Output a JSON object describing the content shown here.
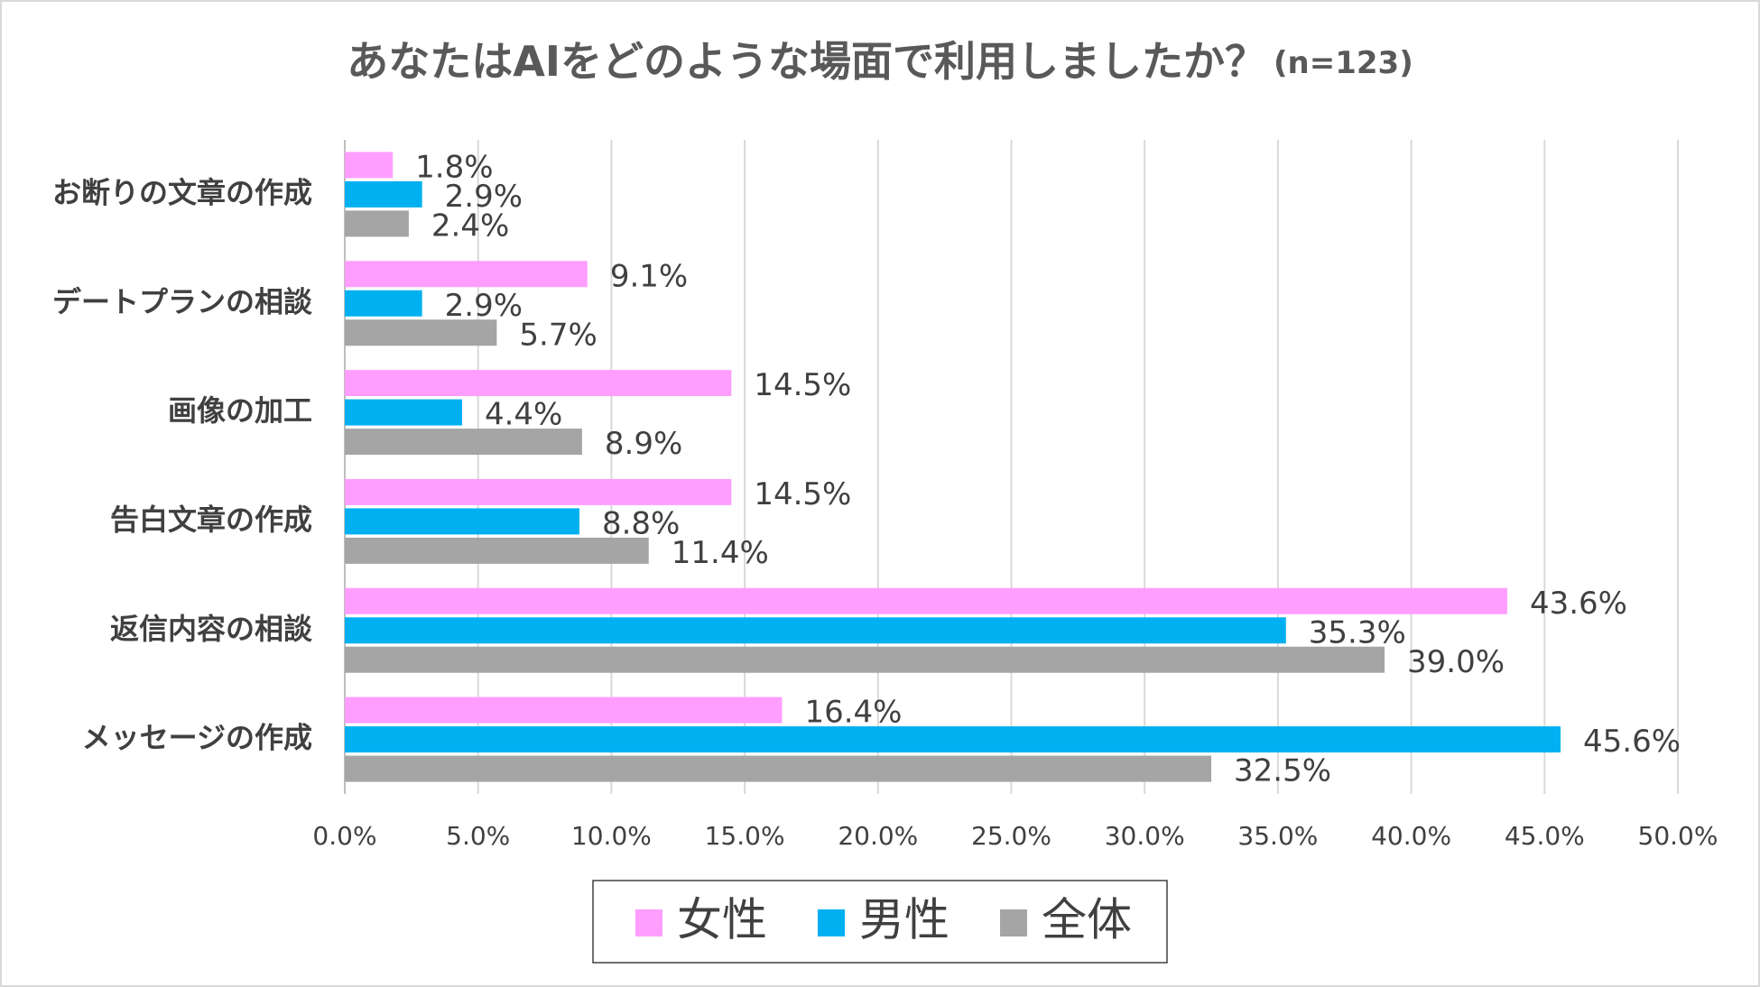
{
  "chart_data": {
    "type": "hbar",
    "title": "あなたはAIをどのような場面で利用しましたか？",
    "subtitle": "(n=123)",
    "categories": [
      "お断りの文章の作成",
      "デートプランの相談",
      "画像の加工",
      "告白文章の作成",
      "返信内容の相談",
      "メッセージの作成"
    ],
    "series": [
      {
        "name": "女性",
        "color": "#ff9eff",
        "values": [
          1.8,
          9.1,
          14.5,
          14.5,
          43.6,
          16.4
        ],
        "value_labels": [
          "1.8%",
          "9.1%",
          "14.5%",
          "14.5%",
          "43.6%",
          "16.4%"
        ]
      },
      {
        "name": "男性",
        "color": "#00b0f0",
        "values": [
          2.9,
          2.9,
          4.4,
          8.8,
          35.3,
          45.6
        ],
        "value_labels": [
          "2.9%",
          "2.9%",
          "4.4%",
          "8.8%",
          "35.3%",
          "45.6%"
        ]
      },
      {
        "name": "全体",
        "color": "#a5a5a5",
        "values": [
          2.4,
          5.7,
          8.9,
          11.4,
          39.0,
          32.5
        ],
        "value_labels": [
          "2.4%",
          "5.7%",
          "8.9%",
          "11.4%",
          "39.0%",
          "32.5%"
        ]
      }
    ],
    "xlim": [
      0,
      50
    ],
    "xticks": [
      {
        "value": 0,
        "label": "0.0%"
      },
      {
        "value": 5,
        "label": "5.0%"
      },
      {
        "value": 10,
        "label": "10.0%"
      },
      {
        "value": 15,
        "label": "15.0%"
      },
      {
        "value": 20,
        "label": "20.0%"
      },
      {
        "value": 25,
        "label": "25.0%"
      },
      {
        "value": 30,
        "label": "30.0%"
      },
      {
        "value": 35,
        "label": "35.0%"
      },
      {
        "value": 40,
        "label": "40.0%"
      },
      {
        "value": 45,
        "label": "45.0%"
      },
      {
        "value": 50,
        "label": "50.0%"
      }
    ],
    "grid": true,
    "legend": "bottom"
  }
}
